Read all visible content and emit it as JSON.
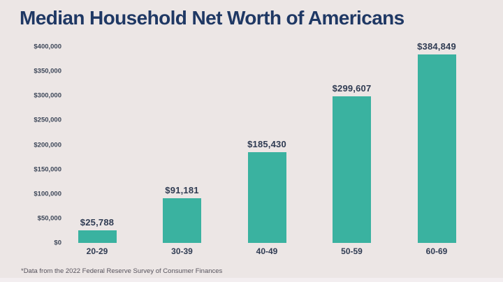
{
  "chart_data": {
    "type": "bar",
    "title": "Median Household Net Worth of Americans",
    "categories": [
      "20-29",
      "30-39",
      "40-49",
      "50-59",
      "60-69"
    ],
    "values": [
      25788,
      91181,
      185430,
      299607,
      384849
    ],
    "value_labels": [
      "$25,788",
      "$91,181",
      "$185,430",
      "$299,607",
      "$384,849"
    ],
    "xlabel": "",
    "ylabel": "",
    "ylim": [
      0,
      400000
    ],
    "ytick_values": [
      0,
      50000,
      100000,
      150000,
      200000,
      250000,
      300000,
      350000,
      400000
    ],
    "ytick_labels": [
      "$0",
      "$50,000",
      "$100,000",
      "$150,000",
      "$200,000",
      "$250,000",
      "$300,000",
      "$350,000",
      "$400,000"
    ],
    "grid": false,
    "legend": false,
    "footnote": "*Data from the 2022 Federal Reserve Survey of Consumer Finances",
    "colors": {
      "background": "#ece6e5",
      "bar": "#3ab2a0",
      "title_text": "#1f3864",
      "label_text": "#2f3b52",
      "axis_text": "#3c4658",
      "footnote_text": "#56525c"
    }
  }
}
